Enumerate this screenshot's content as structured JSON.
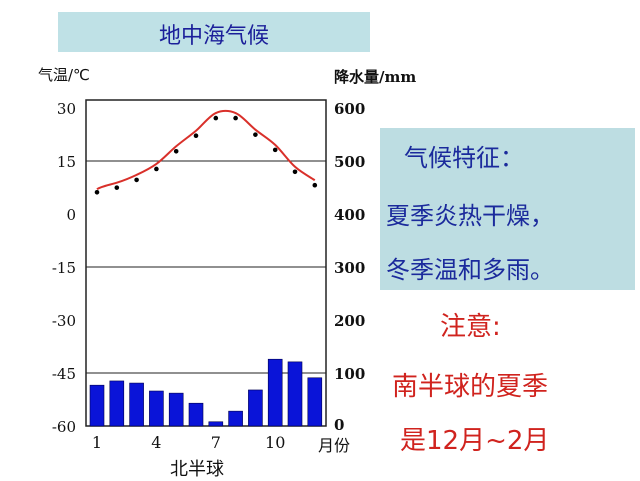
{
  "title": "地中海气候",
  "chart_data": {
    "type": "bar+line",
    "title": "地中海气候",
    "xlabel": "北半球",
    "x_unit_label": "月份",
    "x": [
      1,
      2,
      3,
      4,
      5,
      6,
      7,
      8,
      9,
      10,
      11,
      12
    ],
    "x_tick_labels": [
      "1",
      "4",
      "7",
      "10"
    ],
    "y_left": {
      "label": "气温/℃",
      "ticks": [
        "30",
        "15",
        "0",
        "-15",
        "-30",
        "-45",
        "-60"
      ],
      "range": [
        -60,
        30
      ]
    },
    "y_right": {
      "label": "降水量/mm",
      "ticks": [
        "600",
        "500",
        "400",
        "300",
        "200",
        "100",
        "0"
      ],
      "range": [
        0,
        600
      ]
    },
    "series": [
      {
        "kind": "line",
        "axis": "left",
        "values": [
          7,
          8.3,
          10.5,
          13.6,
          18.6,
          23,
          28,
          28,
          23.3,
          19,
          12.8,
          9
        ],
        "color": "#d9302a"
      },
      {
        "kind": "bar",
        "axis": "right",
        "values": [
          77,
          85,
          81,
          66,
          62,
          43,
          8,
          28,
          68,
          126,
          121,
          91
        ],
        "color": "#0a14d8"
      }
    ],
    "grid": "partial horizontal"
  },
  "features": {
    "heading": "气候特征：",
    "line1": "夏季炎热干燥，",
    "line2": "冬季温和多雨。"
  },
  "note": {
    "heading": "注意:",
    "line1": "南半球的夏季",
    "line2": "是12月~2月"
  }
}
